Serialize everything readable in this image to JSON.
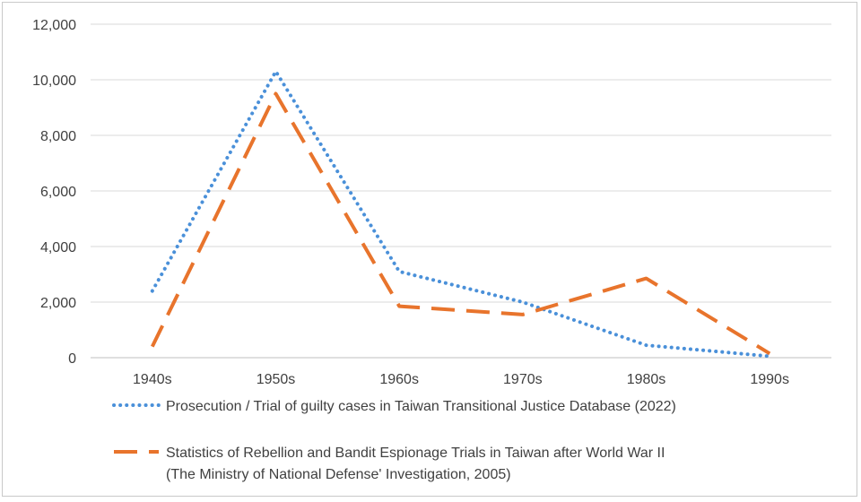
{
  "chart_data": {
    "type": "line",
    "title": "",
    "xlabel": "",
    "ylabel": "",
    "categories": [
      "1940s",
      "1950s",
      "1960s",
      "1970s",
      "1980s",
      "1990s"
    ],
    "ylim": [
      0,
      12000
    ],
    "yticks": [
      0,
      2000,
      4000,
      6000,
      8000,
      10000,
      12000
    ],
    "ytick_labels": [
      "0",
      "2,000",
      "4,000",
      "6,000",
      "8,000",
      "10,000",
      "12,000"
    ],
    "grid": true,
    "legend_position": "bottom",
    "series": [
      {
        "name": "Prosecution / Trial of guilty cases in Taiwan Transitional Justice Database (2022)",
        "name_lines": [
          "Prosecution / Trial of guilty cases in Taiwan Transitional Justice Database (2022)"
        ],
        "values": [
          2400,
          10300,
          3100,
          2000,
          450,
          50
        ],
        "color": "#4a90d9",
        "style": "dotted"
      },
      {
        "name": "Statistics of Rebellion and Bandit Espionage Trials in Taiwan after World War II (The Ministry of National Defense' Investigation, 2005)",
        "name_lines": [
          "Statistics of Rebellion and Bandit Espionage Trials in Taiwan after World War II",
          "(The Ministry of National Defense' Investigation, 2005)"
        ],
        "values": [
          400,
          9500,
          1850,
          1550,
          2850,
          150
        ],
        "color": "#e8742c",
        "style": "dashed"
      }
    ]
  }
}
